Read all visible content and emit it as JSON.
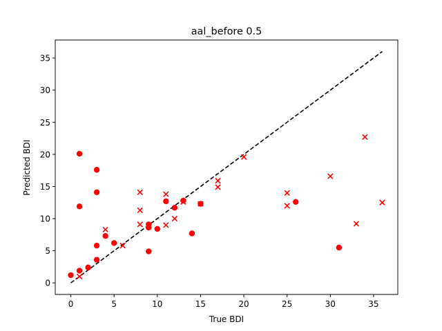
{
  "chart_data": {
    "type": "scatter",
    "title": "aal_before 0.5",
    "xlabel": "True BDI",
    "ylabel": "Predicted BDI",
    "xlim": [
      -1.8,
      37.8
    ],
    "ylim": [
      -1.8,
      37.8
    ],
    "xticks": [
      "0",
      "5",
      "10",
      "15",
      "20",
      "25",
      "30",
      "35"
    ],
    "yticks": [
      "0",
      "5",
      "10",
      "15",
      "20",
      "25",
      "30",
      "35"
    ],
    "grid": false,
    "marker_color": "#ff0000",
    "reference_line": {
      "x": [
        0,
        36
      ],
      "y": [
        0,
        36
      ],
      "style": "dashed",
      "color": "#000000"
    },
    "series": [
      {
        "marker": "circle",
        "points": [
          [
            0,
            1.2
          ],
          [
            1,
            1.9
          ],
          [
            1,
            11.9
          ],
          [
            1,
            20.1
          ],
          [
            2,
            2.4
          ],
          [
            3,
            3.6
          ],
          [
            3,
            5.8
          ],
          [
            3,
            14.1
          ],
          [
            3,
            17.6
          ],
          [
            4,
            7.3
          ],
          [
            5,
            6.2
          ],
          [
            9,
            4.9
          ],
          [
            9,
            8.6
          ],
          [
            9,
            9.1
          ],
          [
            10,
            8.4
          ],
          [
            11,
            12.7
          ],
          [
            12,
            11.7
          ],
          [
            13,
            12.8
          ],
          [
            14,
            7.7
          ],
          [
            15,
            12.3
          ],
          [
            26,
            12.6
          ],
          [
            31,
            5.5
          ]
        ]
      },
      {
        "marker": "x",
        "points": [
          [
            1,
            1.0
          ],
          [
            4,
            8.3
          ],
          [
            6,
            5.8
          ],
          [
            8,
            9.1
          ],
          [
            8,
            11.3
          ],
          [
            8,
            14.1
          ],
          [
            9,
            9.0
          ],
          [
            11,
            9.0
          ],
          [
            11,
            13.8
          ],
          [
            12,
            10.0
          ],
          [
            13,
            12.6
          ],
          [
            15,
            12.3
          ],
          [
            17,
            14.9
          ],
          [
            17,
            15.9
          ],
          [
            20,
            19.6
          ],
          [
            25,
            12.0
          ],
          [
            25,
            14.0
          ],
          [
            30,
            16.6
          ],
          [
            33,
            9.2
          ],
          [
            34,
            22.7
          ],
          [
            36,
            12.5
          ]
        ]
      }
    ]
  }
}
